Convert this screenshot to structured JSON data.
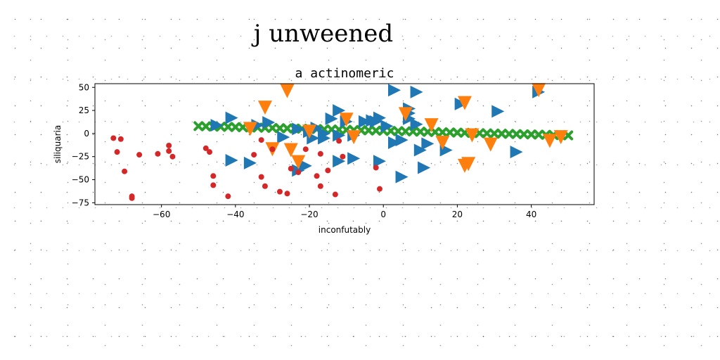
{
  "figure": {
    "suptitle": "j unweened"
  },
  "chart_data": {
    "type": "scatter",
    "title": "a actinomeric",
    "xlabel": "inconfutably",
    "ylabel": "siliquaria",
    "xlim": [
      -78,
      57
    ],
    "ylim": [
      -77,
      54
    ],
    "xticks": [
      -60,
      -40,
      -20,
      0,
      20,
      40
    ],
    "yticks": [
      50,
      25,
      0,
      -25,
      -50,
      -75
    ],
    "grid": false,
    "series": [
      {
        "marker": "triangle-right",
        "color": "#1f77b4",
        "points": [
          [
            -41,
            17
          ],
          [
            -45,
            9
          ],
          [
            -34,
            9
          ],
          [
            -31,
            12
          ],
          [
            -23,
            5
          ],
          [
            -20,
            2
          ],
          [
            -18,
            6
          ],
          [
            -16,
            0
          ],
          [
            -12,
            -2
          ],
          [
            -12,
            25
          ],
          [
            -10,
            13
          ],
          [
            -8,
            -2
          ],
          [
            -5,
            13
          ],
          [
            -3,
            14
          ],
          [
            -2,
            13
          ],
          [
            -1,
            17
          ],
          [
            1,
            8
          ],
          [
            3,
            -10
          ],
          [
            3,
            47
          ],
          [
            5,
            -7
          ],
          [
            7,
            22
          ],
          [
            7,
            16
          ],
          [
            7,
            27
          ],
          [
            9,
            10
          ],
          [
            10,
            -18
          ],
          [
            11,
            -37
          ],
          [
            12,
            -11
          ],
          [
            17,
            -18
          ],
          [
            21,
            32
          ],
          [
            31,
            24
          ],
          [
            36,
            -20
          ],
          [
            42,
            45
          ],
          [
            -14,
            16
          ],
          [
            -19,
            -5
          ],
          [
            -27,
            -4
          ],
          [
            -23,
            -40
          ],
          [
            -21,
            -35
          ],
          [
            -16,
            -5
          ],
          [
            -12,
            -30
          ],
          [
            -8,
            -27
          ],
          [
            -1,
            -30
          ],
          [
            5,
            -47
          ],
          [
            9,
            45
          ],
          [
            -41,
            -29
          ],
          [
            -36,
            -32
          ]
        ]
      },
      {
        "marker": "triangle-down",
        "color": "#ff7f0e",
        "points": [
          [
            -26,
            46
          ],
          [
            -32,
            28
          ],
          [
            -36,
            5
          ],
          [
            -30,
            -17
          ],
          [
            -25,
            -18
          ],
          [
            -23,
            -31
          ],
          [
            -20,
            2
          ],
          [
            -10,
            15
          ],
          [
            -8,
            -4
          ],
          [
            6,
            21
          ],
          [
            13,
            9
          ],
          [
            16,
            -10
          ],
          [
            22,
            -35
          ],
          [
            23,
            -33
          ],
          [
            24,
            -2
          ],
          [
            29,
            -12
          ],
          [
            42,
            47
          ],
          [
            45,
            -8
          ],
          [
            48,
            -4
          ],
          [
            22,
            33
          ]
        ]
      },
      {
        "marker": "x",
        "color": "#2ca02c",
        "points": [
          [
            -50,
            8
          ],
          [
            -48,
            7.8
          ],
          [
            -46,
            7.6
          ],
          [
            -44,
            7.4
          ],
          [
            -42,
            7.2
          ],
          [
            -40,
            7
          ],
          [
            -38,
            6.8
          ],
          [
            -36,
            6.6
          ],
          [
            -34,
            6.4
          ],
          [
            -32,
            6.2
          ],
          [
            -30,
            6
          ],
          [
            -28,
            5.8
          ],
          [
            -26,
            5.6
          ],
          [
            -24,
            5.4
          ],
          [
            -22,
            5.2
          ],
          [
            -20,
            5
          ],
          [
            -18,
            4.8
          ],
          [
            -16,
            4.6
          ],
          [
            -14,
            4.4
          ],
          [
            -12,
            4.2
          ],
          [
            -10,
            4
          ],
          [
            -8,
            3.8
          ],
          [
            -6,
            3.6
          ],
          [
            -4,
            3.4
          ],
          [
            -2,
            3.2
          ],
          [
            0,
            3
          ],
          [
            2,
            2.8
          ],
          [
            4,
            2.6
          ],
          [
            6,
            2.4
          ],
          [
            8,
            2.2
          ],
          [
            10,
            2
          ],
          [
            12,
            1.8
          ],
          [
            14,
            1.6
          ],
          [
            16,
            1.4
          ],
          [
            18,
            1.2
          ],
          [
            20,
            1
          ],
          [
            22,
            0.8
          ],
          [
            24,
            0.6
          ],
          [
            26,
            0.4
          ],
          [
            28,
            0.2
          ],
          [
            30,
            0
          ],
          [
            32,
            -0.2
          ],
          [
            34,
            -0.4
          ],
          [
            36,
            -0.6
          ],
          [
            38,
            -0.8
          ],
          [
            40,
            -1
          ],
          [
            42,
            -1.2
          ],
          [
            44,
            -1.4
          ],
          [
            46,
            -1.6
          ],
          [
            48,
            -1.8
          ],
          [
            50,
            -2
          ]
        ]
      },
      {
        "marker": "circle",
        "color": "#d62728",
        "points": [
          [
            -73,
            -5
          ],
          [
            -71,
            -6
          ],
          [
            -72,
            -20
          ],
          [
            -70,
            -41
          ],
          [
            -68,
            -68
          ],
          [
            -68,
            -70
          ],
          [
            -66,
            -23
          ],
          [
            -61,
            -22
          ],
          [
            -58,
            -13
          ],
          [
            -58,
            -19
          ],
          [
            -57,
            -25
          ],
          [
            -48,
            -16
          ],
          [
            -47,
            -20
          ],
          [
            -46,
            -46
          ],
          [
            -46,
            -56
          ],
          [
            -42,
            -68
          ],
          [
            -35,
            -23
          ],
          [
            -33,
            -7
          ],
          [
            -33,
            -47
          ],
          [
            -32,
            -57
          ],
          [
            -30,
            -17
          ],
          [
            -28,
            -63
          ],
          [
            -26,
            -65
          ],
          [
            -25,
            -38
          ],
          [
            -23,
            -42
          ],
          [
            -21,
            -17
          ],
          [
            -18,
            -46
          ],
          [
            -17,
            -57
          ],
          [
            -17,
            -22
          ],
          [
            -15,
            -40
          ],
          [
            -13,
            -66
          ],
          [
            -12,
            -8
          ],
          [
            -11,
            -25
          ],
          [
            -2,
            -37
          ],
          [
            -1,
            -60
          ]
        ]
      }
    ]
  }
}
